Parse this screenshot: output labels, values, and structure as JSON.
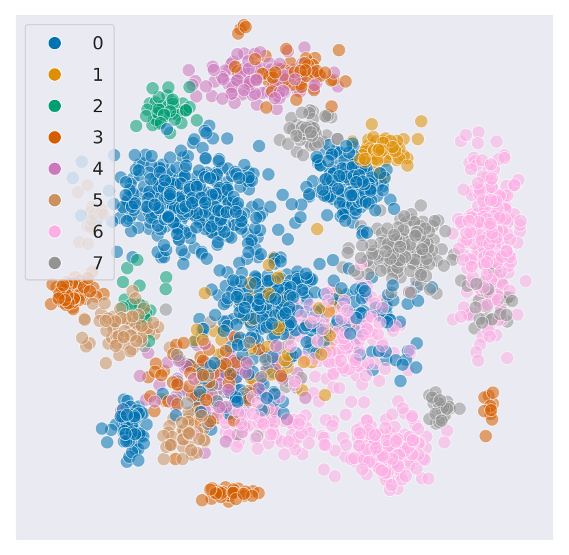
{
  "chart_data": {
    "type": "scatter",
    "title": "",
    "xlabel": "",
    "ylabel": "",
    "grid": false,
    "axis_ticks": false,
    "background": "#eaeaf2",
    "marker_alpha": 0.55,
    "marker_edge": "#ffffff",
    "legend": {
      "position": "top-left"
    },
    "xlim": [
      0,
      100
    ],
    "ylim": [
      0,
      100
    ],
    "series": [
      {
        "name": "0",
        "color": "#0173b2"
      },
      {
        "name": "1",
        "color": "#de8f05"
      },
      {
        "name": "2",
        "color": "#029e73"
      },
      {
        "name": "3",
        "color": "#d55e00"
      },
      {
        "name": "4",
        "color": "#cc78bc"
      },
      {
        "name": "5",
        "color": "#ca9161"
      },
      {
        "name": "6",
        "color": "#fbafe4"
      },
      {
        "name": "7",
        "color": "#949494"
      }
    ],
    "clusters": [
      {
        "series": 0,
        "cx": 33,
        "cy": 65,
        "sx": 12,
        "sy": 8,
        "n": 340
      },
      {
        "series": 0,
        "cx": 47,
        "cy": 45,
        "sx": 8,
        "sy": 7,
        "n": 220
      },
      {
        "series": 0,
        "cx": 62,
        "cy": 68,
        "sx": 6,
        "sy": 6,
        "n": 160
      },
      {
        "series": 0,
        "cx": 21,
        "cy": 22,
        "sx": 3,
        "sy": 4.5,
        "n": 70
      },
      {
        "series": 0,
        "cx": 65,
        "cy": 42,
        "sx": 10,
        "sy": 8,
        "n": 70
      },
      {
        "series": 0,
        "cx": 40,
        "cy": 30,
        "sx": 10,
        "sy": 7,
        "n": 60
      },
      {
        "series": 1,
        "cx": 68,
        "cy": 74,
        "sx": 5,
        "sy": 4,
        "n": 60
      },
      {
        "series": 1,
        "cx": 50,
        "cy": 40,
        "sx": 12,
        "sy": 10,
        "n": 55
      },
      {
        "series": 2,
        "cx": 28,
        "cy": 82,
        "sx": 4,
        "sy": 3,
        "n": 45
      },
      {
        "series": 2,
        "cx": 22,
        "cy": 45,
        "sx": 6,
        "sy": 6,
        "n": 20
      },
      {
        "series": 3,
        "cx": 52,
        "cy": 88,
        "sx": 8,
        "sy": 3.5,
        "n": 55
      },
      {
        "series": 3,
        "cx": 10,
        "cy": 47,
        "sx": 4,
        "sy": 3,
        "n": 45
      },
      {
        "series": 3,
        "cx": 40,
        "cy": 9,
        "sx": 3,
        "sy": 1.3,
        "n": 30
      },
      {
        "series": 3,
        "cx": 35,
        "cy": 30,
        "sx": 10,
        "sy": 8,
        "n": 60
      },
      {
        "series": 3,
        "cx": 88,
        "cy": 25,
        "sx": 1.5,
        "sy": 3,
        "n": 10
      },
      {
        "series": 3,
        "cx": 42,
        "cy": 97,
        "sx": 1,
        "sy": 1,
        "n": 4
      },
      {
        "series": 4,
        "cx": 45,
        "cy": 88,
        "sx": 10,
        "sy": 4,
        "n": 90
      },
      {
        "series": 4,
        "cx": 38,
        "cy": 30,
        "sx": 12,
        "sy": 8,
        "n": 70
      },
      {
        "series": 5,
        "cx": 20,
        "cy": 40,
        "sx": 6,
        "sy": 5,
        "n": 60
      },
      {
        "series": 5,
        "cx": 32,
        "cy": 20,
        "sx": 4,
        "sy": 4,
        "n": 45
      },
      {
        "series": 5,
        "cx": 14,
        "cy": 62,
        "sx": 3,
        "sy": 4,
        "n": 15
      },
      {
        "series": 6,
        "cx": 88,
        "cy": 58,
        "sx": 5,
        "sy": 15,
        "n": 240
      },
      {
        "series": 6,
        "cx": 68,
        "cy": 17,
        "sx": 7,
        "sy": 5,
        "n": 150
      },
      {
        "series": 6,
        "cx": 62,
        "cy": 38,
        "sx": 9,
        "sy": 8,
        "n": 140
      },
      {
        "series": 6,
        "cx": 47,
        "cy": 22,
        "sx": 10,
        "sy": 6,
        "n": 80
      },
      {
        "series": 7,
        "cx": 72,
        "cy": 55,
        "sx": 6,
        "sy": 6,
        "n": 140
      },
      {
        "series": 7,
        "cx": 55,
        "cy": 78,
        "sx": 4,
        "sy": 3,
        "n": 40
      },
      {
        "series": 7,
        "cx": 79,
        "cy": 25,
        "sx": 2,
        "sy": 2.3,
        "n": 25
      },
      {
        "series": 7,
        "cx": 88,
        "cy": 45,
        "sx": 4,
        "sy": 5,
        "n": 30
      },
      {
        "series": 7,
        "cx": 42,
        "cy": 30,
        "sx": 12,
        "sy": 10,
        "n": 50
      }
    ]
  }
}
